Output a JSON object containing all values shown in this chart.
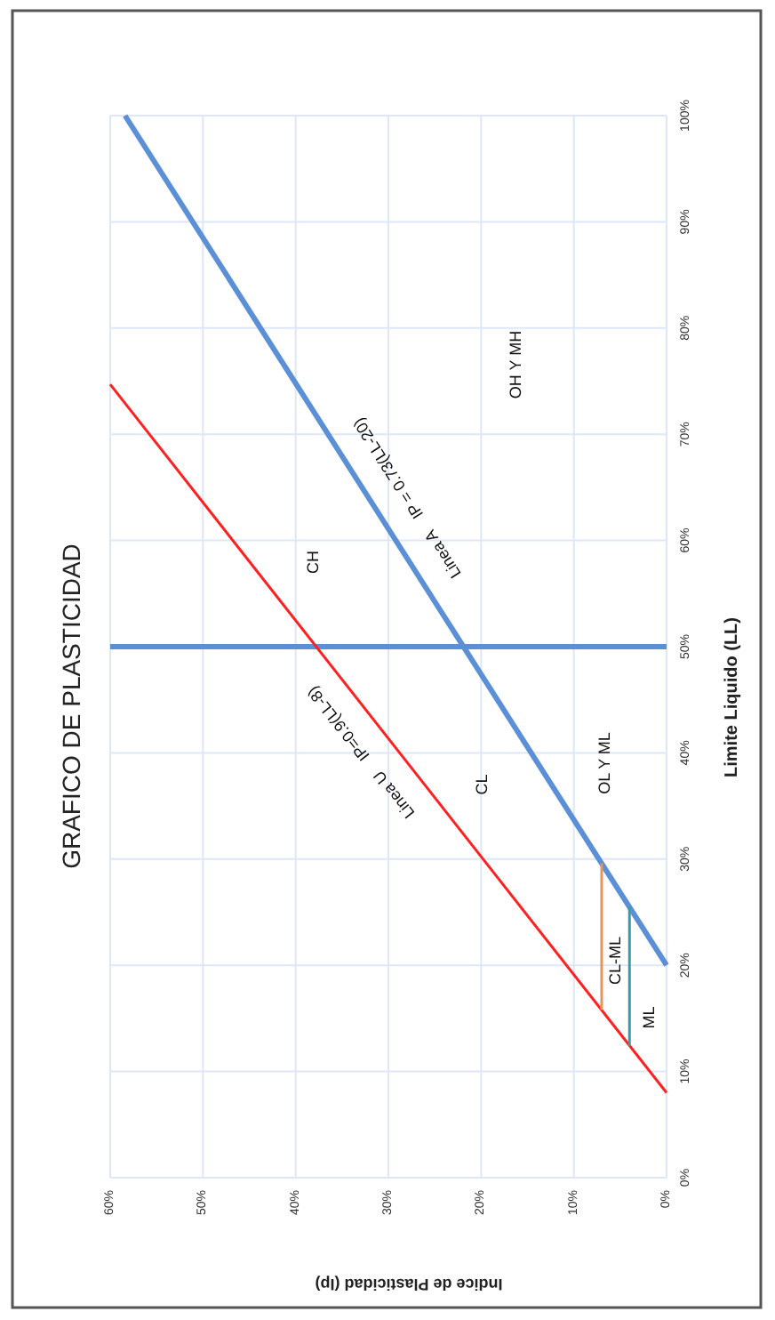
{
  "chart_data": {
    "type": "line",
    "title": "GRAFICO DE PLASTICIDAD",
    "xlabel": "Indice de Plasticidad (Ip)",
    "ylabel": "Limite Liquido (LL)",
    "series": [
      {
        "color": "#5b8fd6",
        "x": [
          0,
          58.4
        ],
        "values": [
          20,
          100
        ]
      },
      {
        "color": "#ff2020",
        "x": [
          0,
          60
        ],
        "values": [
          8,
          74.7
        ]
      },
      {
        "color": "#e8955a",
        "x": [
          7,
          7
        ],
        "values": [
          15.8,
          29.6
        ]
      },
      {
        "color": "#3a9aa8",
        "x": [
          4,
          4
        ],
        "values": [
          12.4,
          25.5
        ]
      }
    ],
    "ref_lines": [
      {
        "axis": "y",
        "value": 50,
        "color": "#5b8fd6"
      }
    ],
    "annotations": [
      "Linea A    IP = 0.73(LL-20)",
      "Linea U    IP=0.9(LL-8)",
      "CH",
      "CL",
      "OL Y ML",
      "OH Y MH",
      "CL-ML",
      "ML"
    ],
    "xlim": [
      60,
      0
    ],
    "xticks": [
      {
        "value": 60,
        "label": "60%"
      },
      {
        "value": 50,
        "label": "50%"
      },
      {
        "value": 40,
        "label": "40%"
      },
      {
        "value": 30,
        "label": "30%"
      },
      {
        "value": 20,
        "label": "20%"
      },
      {
        "value": 10,
        "label": "10%"
      },
      {
        "value": 0,
        "label": "0%"
      }
    ],
    "ylim": [
      0,
      100
    ],
    "yticks": [
      {
        "value": 0,
        "label": "0%"
      },
      {
        "value": 10,
        "label": "10%"
      },
      {
        "value": 20,
        "label": "20%"
      },
      {
        "value": 30,
        "label": "30%"
      },
      {
        "value": 40,
        "label": "40%"
      },
      {
        "value": 50,
        "label": "50%"
      },
      {
        "value": 60,
        "label": "60%"
      },
      {
        "value": 70,
        "label": "70%"
      },
      {
        "value": 80,
        "label": "80%"
      },
      {
        "value": 90,
        "label": "90%"
      },
      {
        "value": 100,
        "label": "100%"
      }
    ],
    "grid": true,
    "marker": "none",
    "line_style": "solid"
  }
}
